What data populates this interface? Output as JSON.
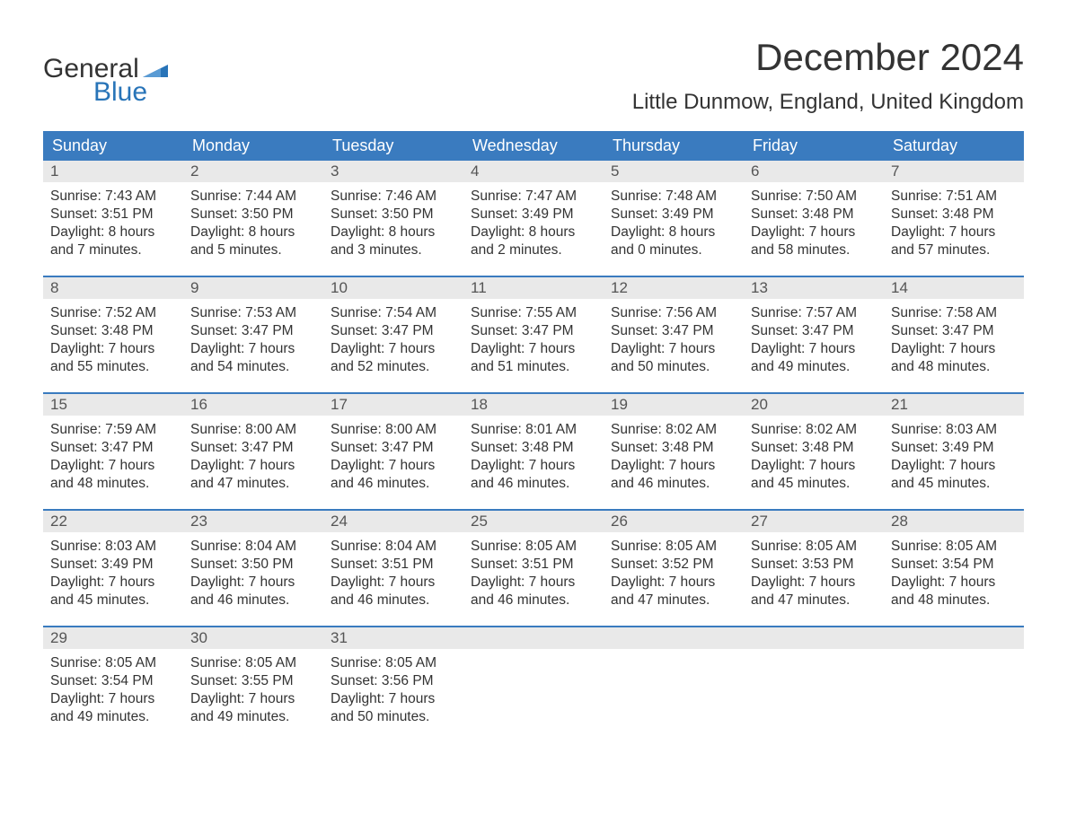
{
  "logo": {
    "text_general": "General",
    "text_blue": "Blue",
    "flag_color": "#2874b8"
  },
  "title": "December 2024",
  "location": "Little Dunmow, England, United Kingdom",
  "colors": {
    "header_bg": "#3a7bbf",
    "header_text": "#ffffff",
    "daynum_bg": "#e9e9e9",
    "daynum_text": "#555555",
    "body_text": "#333333",
    "week_border": "#3a7bbf",
    "page_bg": "#ffffff",
    "logo_blue": "#2874b8"
  },
  "typography": {
    "title_fontsize": 42,
    "location_fontsize": 24,
    "dayheader_fontsize": 18,
    "daynum_fontsize": 17,
    "body_fontsize": 15.5,
    "font_family": "Arial"
  },
  "day_headers": [
    "Sunday",
    "Monday",
    "Tuesday",
    "Wednesday",
    "Thursday",
    "Friday",
    "Saturday"
  ],
  "weeks": [
    [
      {
        "num": "1",
        "sunrise": "Sunrise: 7:43 AM",
        "sunset": "Sunset: 3:51 PM",
        "daylight": "Daylight: 8 hours and 7 minutes."
      },
      {
        "num": "2",
        "sunrise": "Sunrise: 7:44 AM",
        "sunset": "Sunset: 3:50 PM",
        "daylight": "Daylight: 8 hours and 5 minutes."
      },
      {
        "num": "3",
        "sunrise": "Sunrise: 7:46 AM",
        "sunset": "Sunset: 3:50 PM",
        "daylight": "Daylight: 8 hours and 3 minutes."
      },
      {
        "num": "4",
        "sunrise": "Sunrise: 7:47 AM",
        "sunset": "Sunset: 3:49 PM",
        "daylight": "Daylight: 8 hours and 2 minutes."
      },
      {
        "num": "5",
        "sunrise": "Sunrise: 7:48 AM",
        "sunset": "Sunset: 3:49 PM",
        "daylight": "Daylight: 8 hours and 0 minutes."
      },
      {
        "num": "6",
        "sunrise": "Sunrise: 7:50 AM",
        "sunset": "Sunset: 3:48 PM",
        "daylight": "Daylight: 7 hours and 58 minutes."
      },
      {
        "num": "7",
        "sunrise": "Sunrise: 7:51 AM",
        "sunset": "Sunset: 3:48 PM",
        "daylight": "Daylight: 7 hours and 57 minutes."
      }
    ],
    [
      {
        "num": "8",
        "sunrise": "Sunrise: 7:52 AM",
        "sunset": "Sunset: 3:48 PM",
        "daylight": "Daylight: 7 hours and 55 minutes."
      },
      {
        "num": "9",
        "sunrise": "Sunrise: 7:53 AM",
        "sunset": "Sunset: 3:47 PM",
        "daylight": "Daylight: 7 hours and 54 minutes."
      },
      {
        "num": "10",
        "sunrise": "Sunrise: 7:54 AM",
        "sunset": "Sunset: 3:47 PM",
        "daylight": "Daylight: 7 hours and 52 minutes."
      },
      {
        "num": "11",
        "sunrise": "Sunrise: 7:55 AM",
        "sunset": "Sunset: 3:47 PM",
        "daylight": "Daylight: 7 hours and 51 minutes."
      },
      {
        "num": "12",
        "sunrise": "Sunrise: 7:56 AM",
        "sunset": "Sunset: 3:47 PM",
        "daylight": "Daylight: 7 hours and 50 minutes."
      },
      {
        "num": "13",
        "sunrise": "Sunrise: 7:57 AM",
        "sunset": "Sunset: 3:47 PM",
        "daylight": "Daylight: 7 hours and 49 minutes."
      },
      {
        "num": "14",
        "sunrise": "Sunrise: 7:58 AM",
        "sunset": "Sunset: 3:47 PM",
        "daylight": "Daylight: 7 hours and 48 minutes."
      }
    ],
    [
      {
        "num": "15",
        "sunrise": "Sunrise: 7:59 AM",
        "sunset": "Sunset: 3:47 PM",
        "daylight": "Daylight: 7 hours and 48 minutes."
      },
      {
        "num": "16",
        "sunrise": "Sunrise: 8:00 AM",
        "sunset": "Sunset: 3:47 PM",
        "daylight": "Daylight: 7 hours and 47 minutes."
      },
      {
        "num": "17",
        "sunrise": "Sunrise: 8:00 AM",
        "sunset": "Sunset: 3:47 PM",
        "daylight": "Daylight: 7 hours and 46 minutes."
      },
      {
        "num": "18",
        "sunrise": "Sunrise: 8:01 AM",
        "sunset": "Sunset: 3:48 PM",
        "daylight": "Daylight: 7 hours and 46 minutes."
      },
      {
        "num": "19",
        "sunrise": "Sunrise: 8:02 AM",
        "sunset": "Sunset: 3:48 PM",
        "daylight": "Daylight: 7 hours and 46 minutes."
      },
      {
        "num": "20",
        "sunrise": "Sunrise: 8:02 AM",
        "sunset": "Sunset: 3:48 PM",
        "daylight": "Daylight: 7 hours and 45 minutes."
      },
      {
        "num": "21",
        "sunrise": "Sunrise: 8:03 AM",
        "sunset": "Sunset: 3:49 PM",
        "daylight": "Daylight: 7 hours and 45 minutes."
      }
    ],
    [
      {
        "num": "22",
        "sunrise": "Sunrise: 8:03 AM",
        "sunset": "Sunset: 3:49 PM",
        "daylight": "Daylight: 7 hours and 45 minutes."
      },
      {
        "num": "23",
        "sunrise": "Sunrise: 8:04 AM",
        "sunset": "Sunset: 3:50 PM",
        "daylight": "Daylight: 7 hours and 46 minutes."
      },
      {
        "num": "24",
        "sunrise": "Sunrise: 8:04 AM",
        "sunset": "Sunset: 3:51 PM",
        "daylight": "Daylight: 7 hours and 46 minutes."
      },
      {
        "num": "25",
        "sunrise": "Sunrise: 8:05 AM",
        "sunset": "Sunset: 3:51 PM",
        "daylight": "Daylight: 7 hours and 46 minutes."
      },
      {
        "num": "26",
        "sunrise": "Sunrise: 8:05 AM",
        "sunset": "Sunset: 3:52 PM",
        "daylight": "Daylight: 7 hours and 47 minutes."
      },
      {
        "num": "27",
        "sunrise": "Sunrise: 8:05 AM",
        "sunset": "Sunset: 3:53 PM",
        "daylight": "Daylight: 7 hours and 47 minutes."
      },
      {
        "num": "28",
        "sunrise": "Sunrise: 8:05 AM",
        "sunset": "Sunset: 3:54 PM",
        "daylight": "Daylight: 7 hours and 48 minutes."
      }
    ],
    [
      {
        "num": "29",
        "sunrise": "Sunrise: 8:05 AM",
        "sunset": "Sunset: 3:54 PM",
        "daylight": "Daylight: 7 hours and 49 minutes."
      },
      {
        "num": "30",
        "sunrise": "Sunrise: 8:05 AM",
        "sunset": "Sunset: 3:55 PM",
        "daylight": "Daylight: 7 hours and 49 minutes."
      },
      {
        "num": "31",
        "sunrise": "Sunrise: 8:05 AM",
        "sunset": "Sunset: 3:56 PM",
        "daylight": "Daylight: 7 hours and 50 minutes."
      },
      null,
      null,
      null,
      null
    ]
  ]
}
